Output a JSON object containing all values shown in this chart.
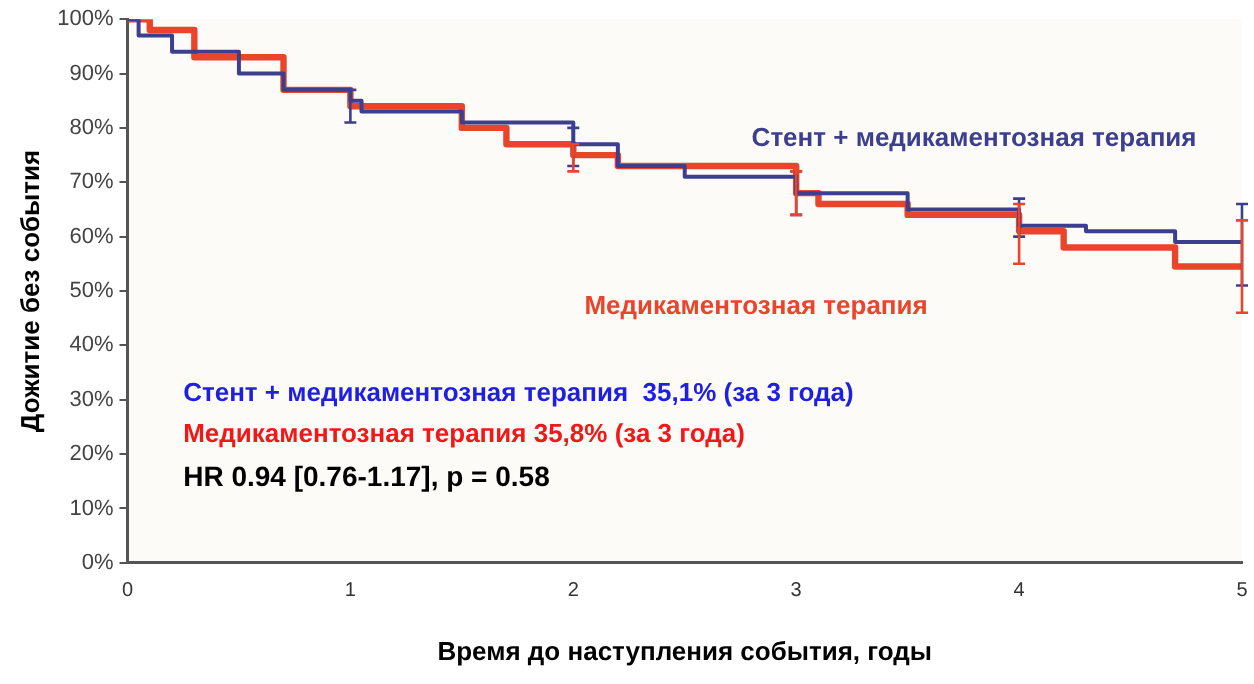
{
  "chart_data": {
    "type": "step",
    "xlabel": "Время до наступления события, годы",
    "ylabel": "Дожитие без события",
    "xlim": [
      0,
      5
    ],
    "xticks": [
      0,
      1,
      2,
      3,
      4,
      5
    ],
    "ylim": [
      0,
      100
    ],
    "yticks": [
      {
        "value": 0,
        "label": "0%"
      },
      {
        "value": 10,
        "label": "10%"
      },
      {
        "value": 20,
        "label": "20%"
      },
      {
        "value": 30,
        "label": "30%"
      },
      {
        "value": 40,
        "label": "40%"
      },
      {
        "value": 50,
        "label": "50%"
      },
      {
        "value": 60,
        "label": "60%"
      },
      {
        "value": 70,
        "label": "70%"
      },
      {
        "value": 80,
        "label": "80%"
      },
      {
        "value": 90,
        "label": "90%"
      },
      {
        "value": 100,
        "label": "100%"
      }
    ],
    "grid": false,
    "legend": false,
    "marker": "none",
    "series": [
      {
        "name": "Стент + медикаментозная терапия",
        "color": "#3c3f8e",
        "x": [
          0,
          0.05,
          0.2,
          0.5,
          0.7,
          1,
          1.05,
          1.5,
          2,
          2.2,
          2.5,
          3,
          3.5,
          4,
          4.3,
          4.7,
          5
        ],
        "values": [
          100,
          97,
          94,
          90,
          87,
          85,
          83,
          81,
          77,
          73,
          71,
          68,
          65,
          62,
          61,
          59,
          59
        ],
        "errors": [
          null,
          null,
          null,
          null,
          null,
          [
            81,
            87
          ],
          null,
          null,
          [
            73,
            80
          ],
          null,
          null,
          [
            64,
            72
          ],
          null,
          [
            60,
            67
          ],
          null,
          null,
          [
            51,
            66
          ]
        ]
      },
      {
        "name": "Медикаментозная терапия",
        "color": "#e8452c",
        "x": [
          0,
          0.1,
          0.3,
          0.7,
          1,
          1.5,
          1.7,
          2,
          2.2,
          3,
          3.1,
          3.5,
          4,
          4.2,
          4.7,
          5
        ],
        "values": [
          100,
          98,
          93,
          87,
          84,
          80,
          77,
          75,
          73,
          68,
          66,
          64,
          61,
          58,
          54.5,
          54.5
        ],
        "errors": [
          null,
          null,
          null,
          null,
          null,
          null,
          null,
          [
            72,
            77
          ],
          null,
          [
            64,
            72
          ],
          null,
          null,
          [
            55,
            66
          ],
          null,
          null,
          [
            46,
            63
          ]
        ]
      }
    ],
    "annotations": [
      "Стент + медикаментозная терапия  35,1% (за 3 года)",
      "Медикаментозная терапия 35,8% (за 3 года)",
      "HR 0.94 [0.76-1.17], p = 0.58"
    ]
  }
}
